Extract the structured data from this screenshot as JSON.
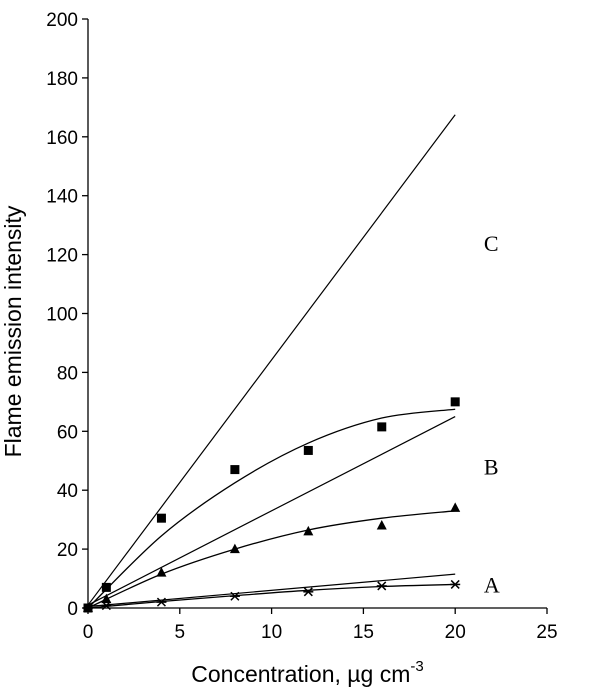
{
  "chart_data": {
    "type": "scatter",
    "title": "",
    "xlabel": "Concentration, µg cm",
    "xlabel_superscript": "-3",
    "ylabel": "Flame emission intensity",
    "xlim": [
      0,
      25
    ],
    "ylim": [
      0,
      200
    ],
    "xticks": [
      0,
      5,
      10,
      15,
      20,
      25
    ],
    "yticks": [
      0,
      20,
      40,
      60,
      80,
      100,
      120,
      140,
      160,
      180,
      200
    ],
    "grid": false,
    "series": [
      {
        "name": "squares",
        "marker": "square",
        "points": [
          [
            0,
            0
          ],
          [
            1,
            7
          ],
          [
            4,
            30.5
          ],
          [
            8,
            47
          ],
          [
            12,
            53.5
          ],
          [
            16,
            61.5
          ],
          [
            20,
            70
          ]
        ],
        "fit_curve": [
          [
            0,
            0
          ],
          [
            4,
            24.5
          ],
          [
            8,
            42.5
          ],
          [
            12,
            56
          ],
          [
            16,
            64.5
          ],
          [
            20,
            67.5
          ]
        ]
      },
      {
        "name": "triangles",
        "marker": "triangle",
        "points": [
          [
            0,
            0
          ],
          [
            1,
            3
          ],
          [
            4,
            12
          ],
          [
            8,
            20
          ],
          [
            12,
            26
          ],
          [
            16,
            28
          ],
          [
            20,
            34
          ]
        ],
        "fit_curve": [
          [
            0,
            0
          ],
          [
            4,
            11.5
          ],
          [
            8,
            20
          ],
          [
            12,
            26.5
          ],
          [
            16,
            30.5
          ],
          [
            20,
            33
          ]
        ]
      },
      {
        "name": "crosses",
        "marker": "star",
        "points": [
          [
            0,
            0
          ],
          [
            1,
            0.8
          ],
          [
            4,
            2
          ],
          [
            8,
            4
          ],
          [
            12,
            5.5
          ],
          [
            16,
            7.5
          ],
          [
            20,
            8
          ]
        ],
        "fit_curve": [
          [
            0,
            0
          ],
          [
            4,
            2.2
          ],
          [
            8,
            4.2
          ],
          [
            12,
            6
          ],
          [
            16,
            7.3
          ],
          [
            20,
            8
          ]
        ]
      }
    ],
    "reference_lines": [
      {
        "name": "line-C",
        "from": [
          0,
          1
        ],
        "to": [
          20,
          167.5
        ]
      },
      {
        "name": "line-B",
        "from": [
          0,
          1
        ],
        "to": [
          20,
          65
        ]
      },
      {
        "name": "line-A",
        "from": [
          0,
          0.5
        ],
        "to": [
          20,
          11.5
        ]
      }
    ],
    "annotations": [
      {
        "text": "C",
        "x": 22,
        "y": 124
      },
      {
        "text": "B",
        "x": 22,
        "y": 48
      },
      {
        "text": "A",
        "x": 22,
        "y": 8
      }
    ]
  }
}
